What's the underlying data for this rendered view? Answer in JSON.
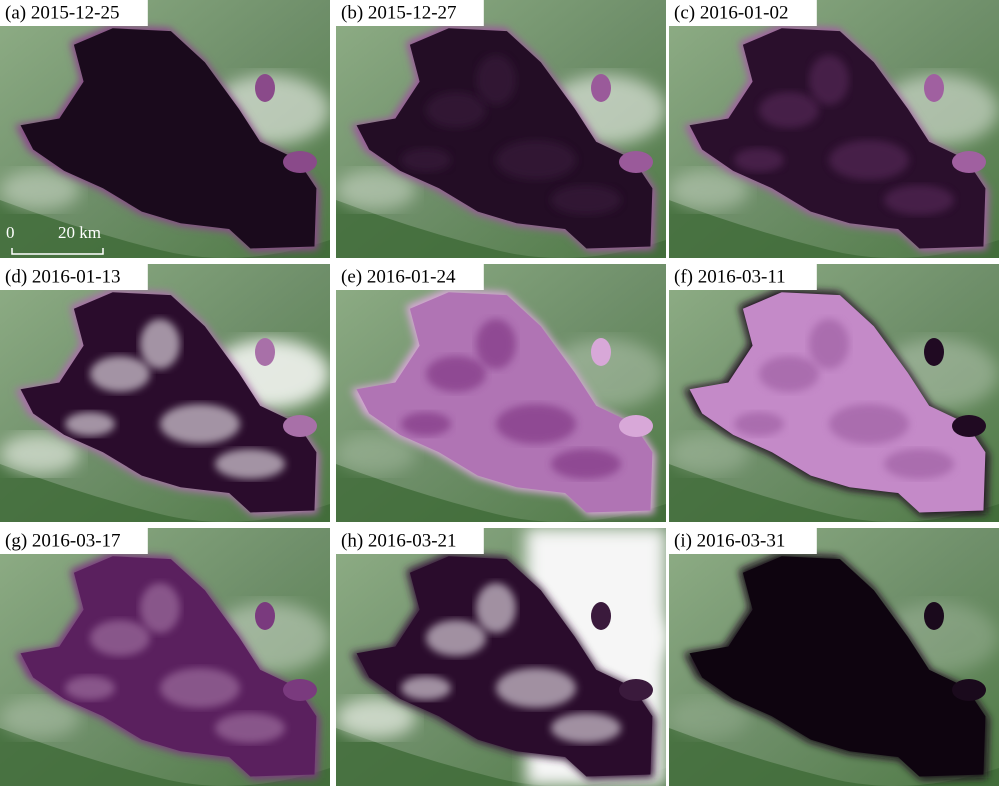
{
  "panels": [
    {
      "label": "(a) 2015-12-25"
    },
    {
      "label": "(b) 2015-12-27"
    },
    {
      "label": "(c) 2016-01-02"
    },
    {
      "label": "(d) 2016-01-13"
    },
    {
      "label": "(e) 2016-01-24"
    },
    {
      "label": "(f) 2016-03-11"
    },
    {
      "label": "(g) 2016-03-17"
    },
    {
      "label": "(h) 2016-03-21"
    },
    {
      "label": "(i) 2016-03-31"
    }
  ],
  "scale_bar": {
    "start": "0",
    "end": "20 km"
  }
}
